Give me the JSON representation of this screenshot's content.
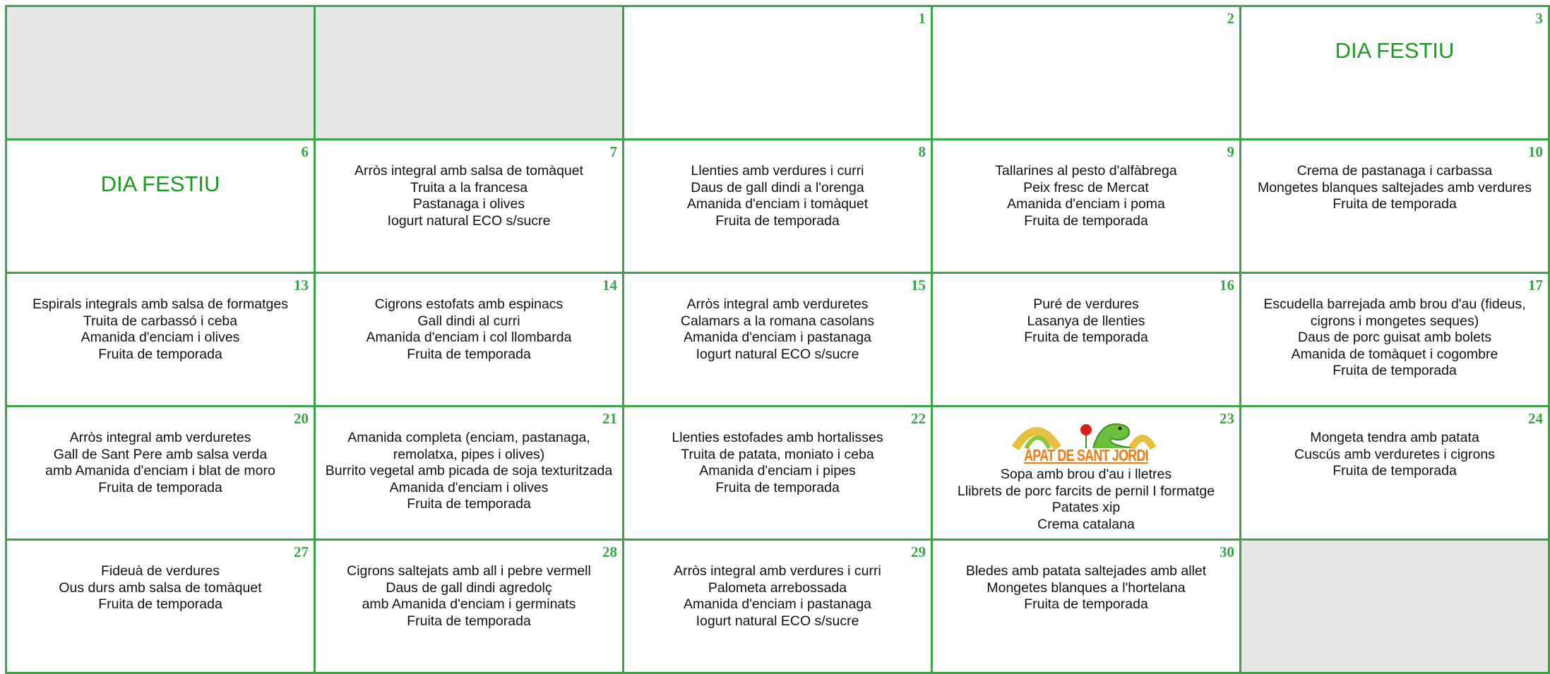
{
  "calendar": {
    "weeks": [
      [
        null,
        null,
        {
          "day": 1
        },
        {
          "day": 2
        },
        {
          "day": 3,
          "holiday": "DIA FESTIU"
        }
      ],
      [
        {
          "day": 6,
          "holiday": "DIA FESTIU"
        },
        {
          "day": 7,
          "lines": [
            "Arròs integral amb salsa de tomàquet",
            "Truita a la francesa",
            "Pastanaga i olives",
            "Iogurt natural ECO s/sucre"
          ]
        },
        {
          "day": 8,
          "lines": [
            "Llenties amb verdures i curri",
            "Daus de gall dindi a l'orenga",
            "Amanida d'enciam i tomàquet",
            "Fruita de temporada"
          ]
        },
        {
          "day": 9,
          "lines": [
            "Tallarines al pesto d'alfàbrega",
            "Peix fresc de Mercat",
            "Amanida d'enciam i poma",
            "Fruita de temporada"
          ]
        },
        {
          "day": 10,
          "lines": [
            "Crema de pastanaga i carbassa",
            "Mongetes blanques saltejades amb verdures",
            "Fruita de temporada"
          ]
        }
      ],
      [
        {
          "day": 13,
          "lines": [
            "Espirals integrals amb salsa de formatges",
            "Truita de carbassó i ceba",
            "Amanida d'enciam i olives",
            "Fruita de temporada"
          ]
        },
        {
          "day": 14,
          "lines": [
            "Cigrons estofats amb espinacs",
            "Gall dindi al curri",
            "Amanida d'enciam i col llombarda",
            "Fruita de temporada"
          ]
        },
        {
          "day": 15,
          "lines": [
            "Arròs integral amb verduretes",
            "Calamars a la romana casolans",
            "Amanida d'enciam i pastanaga",
            "Iogurt natural ECO s/sucre"
          ]
        },
        {
          "day": 16,
          "lines": [
            "Puré de verdures",
            "Lasanya de llenties",
            "Fruita de temporada"
          ]
        },
        {
          "day": 17,
          "lines": [
            "Escudella barrejada amb brou d'au (fideus, cigrons i mongetes seques)",
            "Daus de porc guisat amb bolets",
            "Amanida de tomàquet i cogombre",
            "Fruita de temporada"
          ]
        }
      ],
      [
        {
          "day": 20,
          "lines": [
            "Arròs integral amb verduretes",
            "Gall de Sant Pere amb salsa verda",
            "amb Amanida d'enciam i blat de moro",
            "Fruita de temporada"
          ]
        },
        {
          "day": 21,
          "lines": [
            "Amanida completa (enciam, pastanaga, remolatxa, pipes i olives)",
            "Burrito vegetal amb picada de soja texturitzada",
            "Amanida d'enciam i olives",
            "Fruita de temporada"
          ]
        },
        {
          "day": 22,
          "lines": [
            "Llenties estofades amb hortalisses",
            "Truita de patata, moniato i ceba",
            "Amanida d'enciam i pipes",
            "Fruita de temporada"
          ]
        },
        {
          "day": 23,
          "banner": "ÀPAT DE SANT JORDI",
          "lines": [
            "Sopa amb brou d'au i lletres",
            "Llibrets de porc farcits de pernil I formatge",
            "Patates xip",
            "Crema catalana"
          ]
        },
        {
          "day": 24,
          "lines": [
            "Mongeta tendra amb patata",
            "Cuscús amb verduretes i cigrons",
            "Fruita de temporada"
          ]
        }
      ],
      [
        {
          "day": 27,
          "lines": [
            "Fideuà de verdures",
            "Ous durs amb salsa de tomàquet",
            "Fruita de temporada"
          ]
        },
        {
          "day": 28,
          "lines": [
            "Cigrons saltejats amb all i pebre vermell",
            "Daus de gall dindi agredolç",
            "amb Amanida d'enciam i germinats",
            "Fruita de temporada"
          ]
        },
        {
          "day": 29,
          "lines": [
            "Arròs integral amb verdures i curri",
            "Palometa arrebossada",
            "Amanida d'enciam i pastanaga",
            "Iogurt natural ECO s/sucre"
          ]
        },
        {
          "day": 30,
          "lines": [
            "Bledes amb patata saltejades amb allet",
            "Mongetes blanques a l'hortelana",
            "Fruita de temporada"
          ]
        },
        null
      ]
    ]
  }
}
